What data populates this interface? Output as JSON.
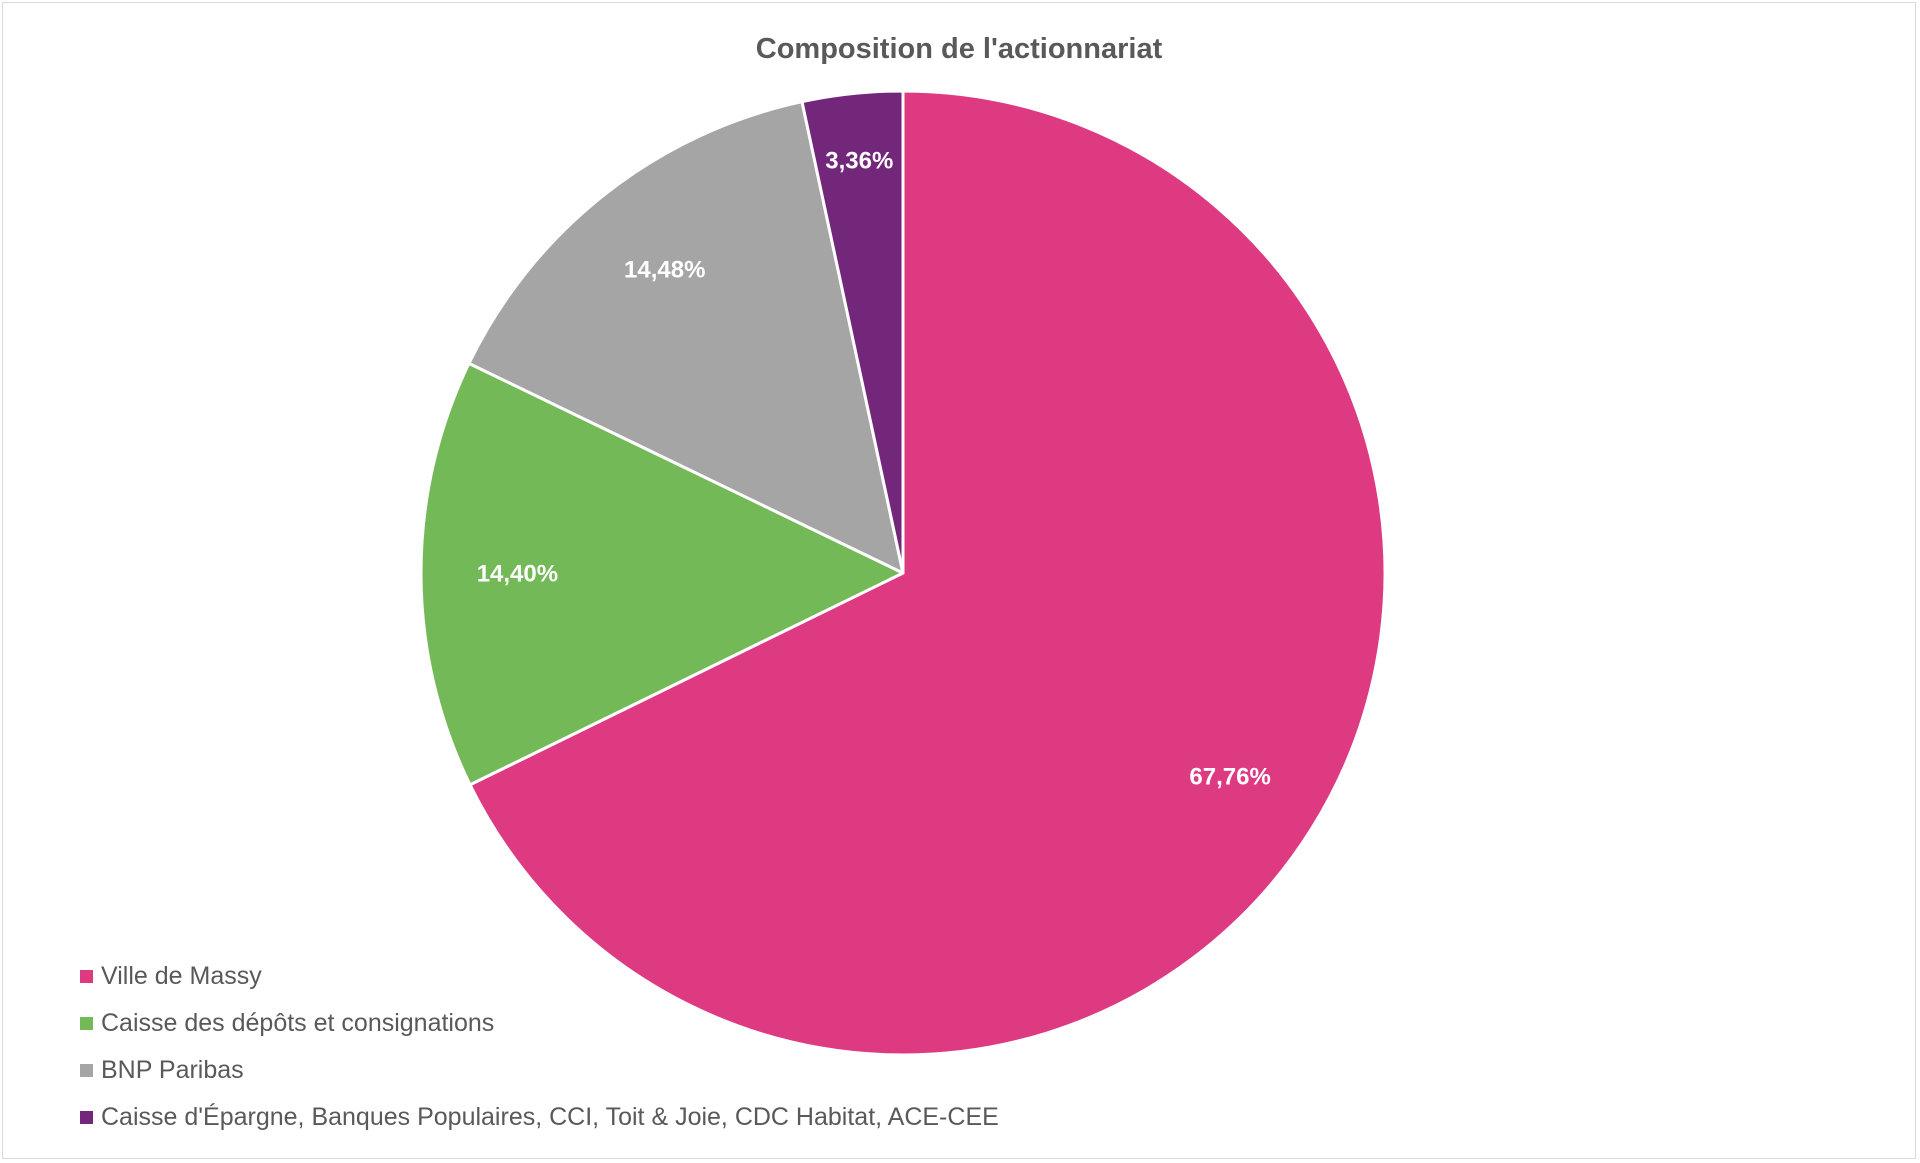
{
  "chart_data": {
    "type": "pie",
    "title": "Composition de l'actionnariat",
    "start_angle_deg": 0,
    "direction": "clockwise",
    "legend_position": "bottom-left",
    "slices": [
      {
        "name": "Ville de Massy",
        "value": 67.76,
        "label": "67,76%",
        "color": "#DE3A82"
      },
      {
        "name": "Caisse des dépôts et consignations",
        "value": 14.4,
        "label": "14,40%",
        "color": "#74B957"
      },
      {
        "name": "BNP Paribas",
        "value": 14.48,
        "label": "14,48%",
        "color": "#A5A5A5"
      },
      {
        "name": "Caisse d'Épargne, Banques Populaires, CCI, Toit & Joie, CDC Habitat, ACE-CEE",
        "value": 3.36,
        "label": "3,36%",
        "color": "#73277A"
      }
    ]
  }
}
